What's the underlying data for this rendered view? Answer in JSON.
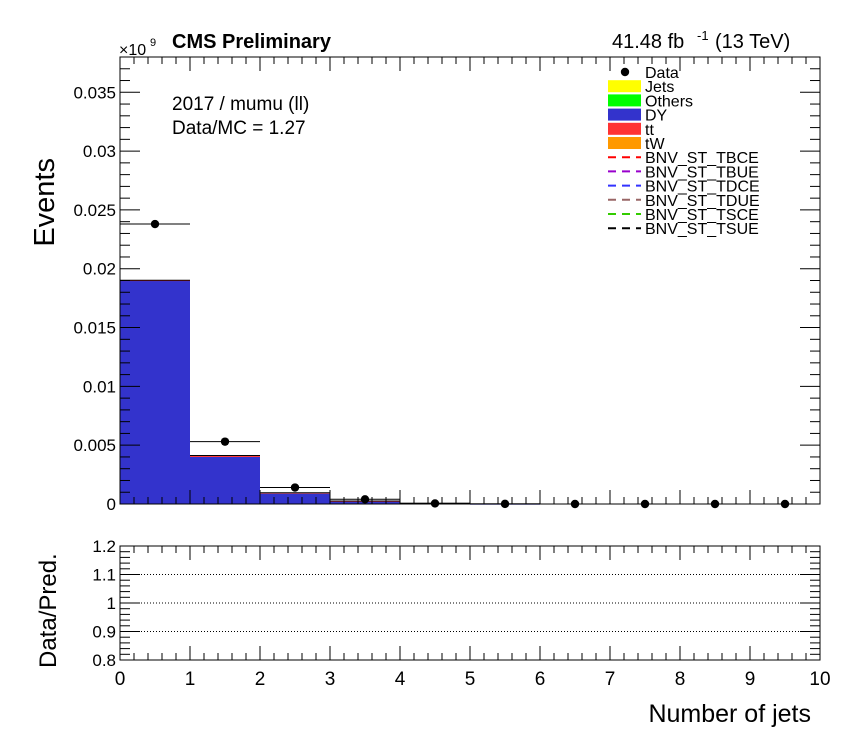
{
  "chart_data": [
    {
      "type": "bar",
      "stacked": true,
      "title": "CMS Preliminary",
      "lumi_label": "41.48 fb",
      "lumi_exponent": "-1",
      "energy_label": "(13 TeV)",
      "annotations": [
        "2017 / mumu (ll)",
        "Data/MC = 1.27"
      ],
      "ylabel": "Events",
      "xlabel": "",
      "y_multiplier": "×10",
      "y_multiplier_exponent": "9",
      "ylim": [
        0,
        0.038
      ],
      "xlim": [
        0,
        10
      ],
      "y_ticks": [
        0,
        0.005,
        0.01,
        0.015,
        0.02,
        0.025,
        0.03,
        0.035
      ],
      "y_tick_labels": [
        "0",
        "0.005",
        "0.01",
        "0.015",
        "0.02",
        "0.025",
        "0.03",
        "0.035"
      ],
      "grid": false,
      "legend_position": "top-right",
      "bins": [
        [
          0,
          1
        ],
        [
          1,
          2
        ],
        [
          2,
          3
        ],
        [
          3,
          4
        ],
        [
          4,
          5
        ],
        [
          5,
          6
        ],
        [
          6,
          7
        ],
        [
          7,
          8
        ],
        [
          8,
          9
        ],
        [
          9,
          10
        ]
      ],
      "stack_series": [
        {
          "name": "DY",
          "color": "#3333cc",
          "values": [
            0.019,
            0.004,
            0.00088,
            0.00022,
            5e-05,
            1e-05,
            0,
            0,
            0,
            0
          ]
        },
        {
          "name": "tt",
          "color": "#ff3333",
          "values": [
            2e-05,
            0.00012,
            8e-05,
            3e-05,
            1e-05,
            0,
            0,
            0,
            0,
            0
          ]
        },
        {
          "name": "tW",
          "color": "#ff9900",
          "values": [
            0,
            0,
            0,
            0,
            0,
            0,
            0,
            0,
            0,
            0
          ]
        },
        {
          "name": "Jets",
          "color": "#ffff00",
          "values": [
            0,
            0,
            0,
            0,
            0,
            0,
            0,
            0,
            0,
            0
          ]
        },
        {
          "name": "Others",
          "color": "#00ff00",
          "values": [
            0,
            0,
            0,
            0,
            0,
            0,
            0,
            0,
            0,
            0
          ]
        }
      ],
      "data_points": {
        "name": "Data",
        "x": [
          0.5,
          1.5,
          2.5,
          3.5,
          4.5,
          5.5,
          6.5,
          7.5,
          8.5,
          9.5
        ],
        "y": [
          0.0238,
          0.0053,
          0.0014,
          0.0004,
          5e-05,
          1e-05,
          0,
          0,
          0,
          0
        ]
      },
      "legend": [
        {
          "label": "Data",
          "kind": "marker",
          "color": "#000000"
        },
        {
          "label": "Jets",
          "kind": "fill",
          "color": "#ffff00"
        },
        {
          "label": "Others",
          "kind": "fill",
          "color": "#00ff00"
        },
        {
          "label": "DY",
          "kind": "fill",
          "color": "#3333cc"
        },
        {
          "label": "tt",
          "kind": "fill",
          "color": "#ff3333"
        },
        {
          "label": "tW",
          "kind": "fill",
          "color": "#ff9900"
        },
        {
          "label": "BNV_ST_TBCE",
          "kind": "dash",
          "color": "#ff0000"
        },
        {
          "label": "BNV_ST_TBUE",
          "kind": "dash",
          "color": "#9900cc"
        },
        {
          "label": "BNV_ST_TDCE",
          "kind": "dash",
          "color": "#3333ff"
        },
        {
          "label": "BNV_ST_TDUE",
          "kind": "dash",
          "color": "#996666"
        },
        {
          "label": "BNV_ST_TSCE",
          "kind": "dash",
          "color": "#33cc00"
        },
        {
          "label": "BNV_ST_TSUE",
          "kind": "dash",
          "color": "#000000"
        }
      ]
    },
    {
      "type": "scatter",
      "ylabel": "Data/Pred.",
      "xlabel": "Number of jets",
      "xlim": [
        0,
        10
      ],
      "ylim": [
        0.8,
        1.2
      ],
      "x_ticks": [
        0,
        1,
        2,
        3,
        4,
        5,
        6,
        7,
        8,
        9,
        10
      ],
      "x_tick_labels": [
        "0",
        "1",
        "2",
        "3",
        "4",
        "5",
        "6",
        "7",
        "8",
        "9",
        "10"
      ],
      "y_ticks": [
        0.8,
        0.9,
        1.0,
        1.1,
        1.2
      ],
      "y_tick_labels": [
        "0.8",
        "0.9",
        "1",
        "1.1",
        "1.2"
      ],
      "reference_lines": [
        0.9,
        1.0,
        1.1
      ],
      "grid": false
    }
  ]
}
